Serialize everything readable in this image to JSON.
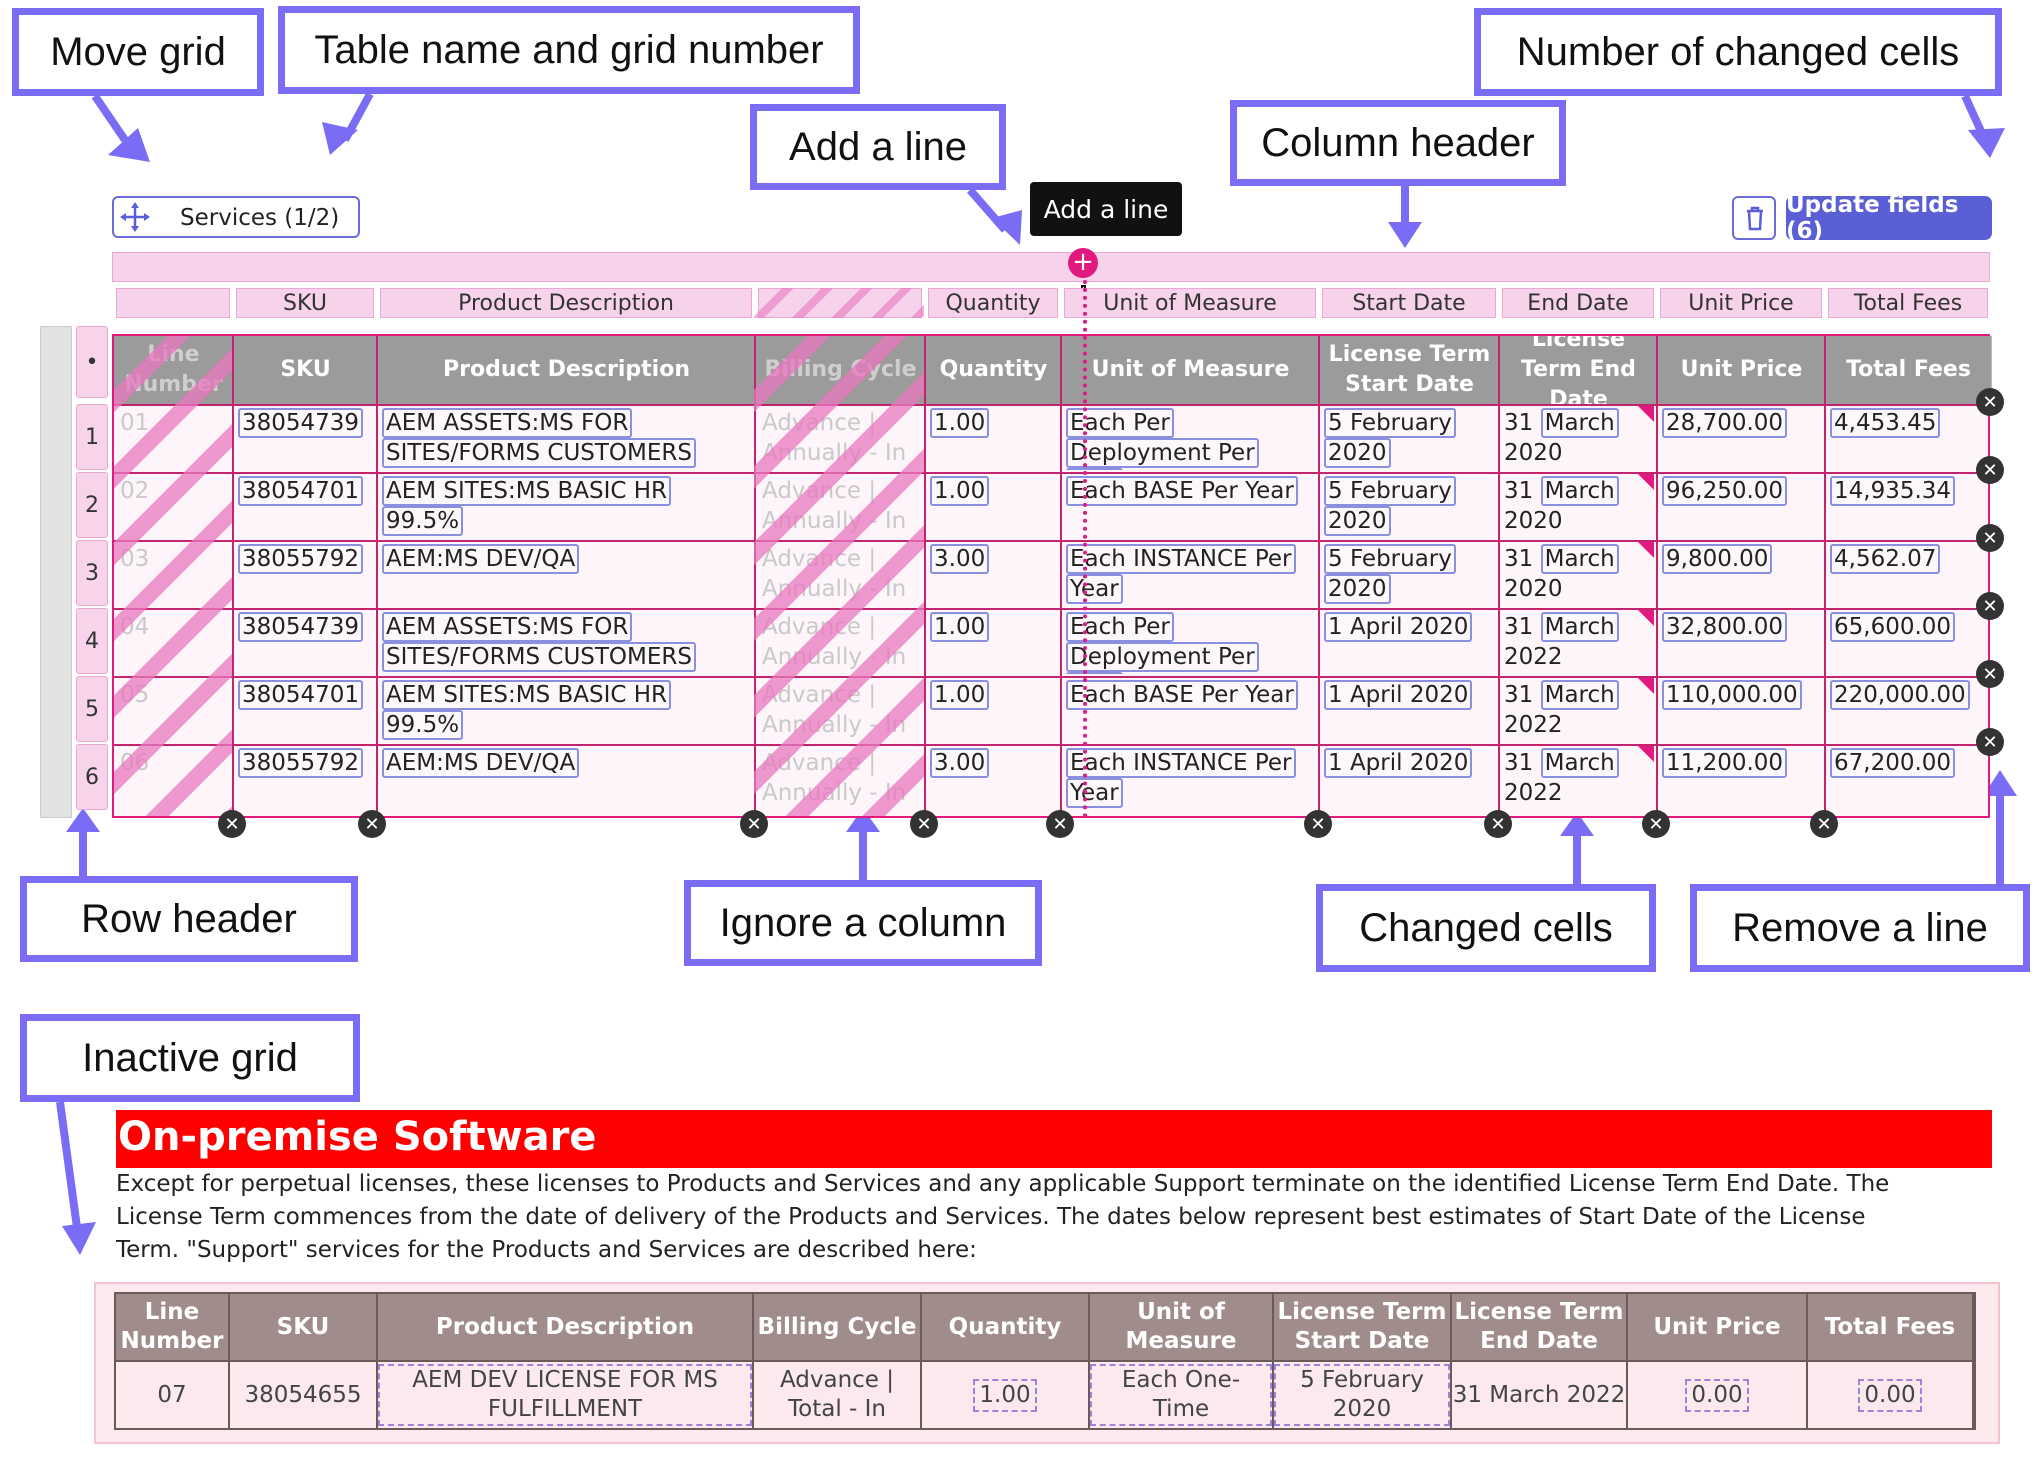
{
  "callouts": {
    "move_grid": "Move grid",
    "table_name": "Table name and grid number",
    "changed_count": "Number of changed cells",
    "add_line": "Add a line",
    "column_header": "Column header",
    "row_header": "Row header",
    "ignore_column": "Ignore a column",
    "changed_cells": "Changed cells",
    "remove_line": "Remove a line",
    "inactive_grid": "Inactive grid"
  },
  "grid": {
    "name": "Services (1/2)",
    "update_button": "Update fields (6)",
    "tooltip": "Add a line",
    "column_headers": [
      "",
      "SKU",
      "Product Description",
      "",
      "Quantity",
      "Unit of Measure",
      "Start Date",
      "End Date",
      "Unit Price",
      "Total Fees"
    ],
    "table_headers": [
      "Line Number",
      "SKU",
      "Product Description",
      "Billing Cycle",
      "Quantity",
      "Unit of Measure",
      "License Term Start Date",
      "License Term End Date",
      "Unit Price",
      "Total Fees"
    ],
    "row_header_marker": "•",
    "rows": [
      {
        "num": "1",
        "line": "01",
        "sku": "38054739",
        "desc": "AEM ASSETS:MS FOR SITES/FORMS CUSTOMERS",
        "billing": "Advance | Annually - In",
        "qty": "1.00",
        "uom": "Each Per Deployment Per Year",
        "start": "5 February 2020",
        "end_a": "31",
        "end_b": "March",
        "end_c": "2020",
        "price": "28,700.00",
        "total": "4,453.45"
      },
      {
        "num": "2",
        "line": "02",
        "sku": "38054701",
        "desc": "AEM SITES:MS BASIC HR 99.5%",
        "billing": "Advance | Annually - In",
        "qty": "1.00",
        "uom": "Each BASE Per Year",
        "start": "5 February 2020",
        "end_a": "31",
        "end_b": "March",
        "end_c": "2020",
        "price": "96,250.00",
        "total": "14,935.34"
      },
      {
        "num": "3",
        "line": "03",
        "sku": "38055792",
        "desc": "AEM:MS DEV/QA",
        "billing": "Advance | Annually - In",
        "qty": "3.00",
        "uom": "Each INSTANCE Per Year",
        "start": "5 February 2020",
        "end_a": "31",
        "end_b": "March",
        "end_c": "2020",
        "price": "9,800.00",
        "total": "4,562.07"
      },
      {
        "num": "4",
        "line": "04",
        "sku": "38054739",
        "desc": "AEM ASSETS:MS FOR SITES/FORMS CUSTOMERS",
        "billing": "Advance | Annually - In",
        "qty": "1.00",
        "uom": "Each Per Deployment Per Year",
        "start": "1 April 2020",
        "end_a": "31",
        "end_b": "March",
        "end_c": "2022",
        "price": "32,800.00",
        "total": "65,600.00"
      },
      {
        "num": "5",
        "line": "05",
        "sku": "38054701",
        "desc": "AEM SITES:MS BASIC HR 99.5%",
        "billing": "Advance | Annually - In",
        "qty": "1.00",
        "uom": "Each BASE Per Year",
        "start": "1 April 2020",
        "end_a": "31",
        "end_b": "March",
        "end_c": "2022",
        "price": "110,000.00",
        "total": "220,000.00"
      },
      {
        "num": "6",
        "line": "06",
        "sku": "38055792",
        "desc": "AEM:MS DEV/QA",
        "billing": "Advance | Annually - In",
        "qty": "3.00",
        "uom": "Each INSTANCE Per Year",
        "start": "1 April 2020",
        "end_a": "31",
        "end_b": "March",
        "end_c": "2022",
        "price": "11,200.00",
        "total": "67,200.00"
      }
    ]
  },
  "document": {
    "section_title": "On-premise Software",
    "body_text": "Except for perpetual licenses, these licenses to Products and Services and any applicable Support terminate on the identified License Term End Date. The License Term commences from the date of delivery of the Products and Services. The dates below represent best estimates of Start Date of the License Term. \"Support\" services for the Products and Services are described here:",
    "inactive_headers": [
      "Line Number",
      "SKU",
      "Product Description",
      "Billing Cycle",
      "Quantity",
      "Unit of Measure",
      "License Term Start Date",
      "License Term End Date",
      "Unit Price",
      "Total Fees"
    ],
    "inactive_row": {
      "line": "07",
      "sku": "38054655",
      "desc": "AEM DEV LICENSE FOR MS FULFILLMENT",
      "billing": "Advance | Total - In",
      "qty": "1.00",
      "uom": "Each One-Time",
      "start": "5 February 2020",
      "end": "31 March 2022",
      "price": "0.00",
      "total": "0.00"
    }
  },
  "colors": {
    "callout_border": "#7b6cf6",
    "accent_pink": "#e2197f",
    "update_button": "#5a5fd6",
    "section_red": "#ff0000",
    "header_gray": "#9b9b9b",
    "inactive_header": "#a18c8c"
  },
  "icons": [
    "move-icon",
    "trash-icon",
    "add-circle-icon",
    "pointer-cursor-icon",
    "remove-x-icon"
  ]
}
